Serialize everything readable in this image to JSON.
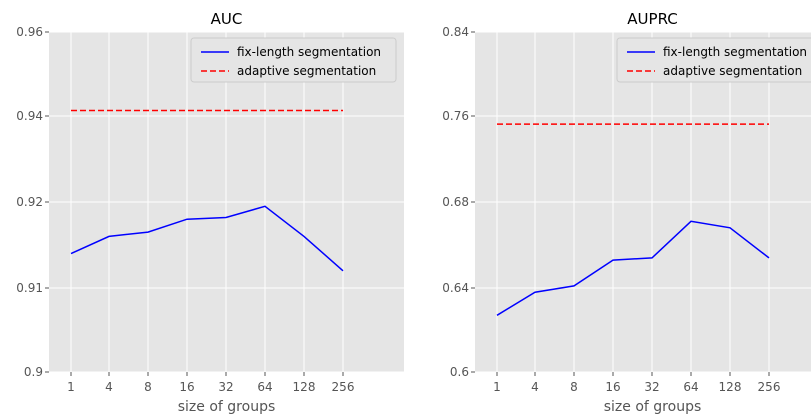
{
  "chart_data": [
    {
      "type": "line",
      "title": "AUC",
      "xlabel": "size of groups",
      "ylabel": "",
      "x": [
        "1",
        "4",
        "8",
        "16",
        "32",
        "64",
        "128",
        "256"
      ],
      "ytick_labels": [
        "0.96",
        "0.94",
        "0.92",
        "0.91",
        "0.9"
      ],
      "series": [
        {
          "name": "fix-length segmentation",
          "style": "solid",
          "color": "#0000ff",
          "values": [
            0.914,
            0.916,
            0.9165,
            0.918,
            0.9182,
            0.9195,
            0.916,
            0.912
          ]
        },
        {
          "name": "adaptive segmentation",
          "style": "dashed",
          "color": "#ff0000",
          "values": [
            0.9413,
            0.9413,
            0.9413,
            0.9413,
            0.9413,
            0.9413,
            0.9413,
            0.9413
          ]
        }
      ],
      "grid": true,
      "legend": "top-right"
    },
    {
      "type": "line",
      "title": "AUPRC",
      "xlabel": "size of groups",
      "ylabel": "",
      "x": [
        "1",
        "4",
        "8",
        "16",
        "32",
        "64",
        "128",
        "256"
      ],
      "ytick_labels": [
        "0.84",
        "0.76",
        "0.68",
        "0.64",
        "0.6"
      ],
      "series": [
        {
          "name": "fix-length segmentation",
          "style": "solid",
          "color": "#0000ff",
          "values": [
            0.627,
            0.638,
            0.641,
            0.653,
            0.654,
            0.671,
            0.668,
            0.654
          ]
        },
        {
          "name": "adaptive segmentation",
          "style": "dashed",
          "color": "#ff0000",
          "values": [
            0.7525,
            0.7525,
            0.7525,
            0.7525,
            0.7525,
            0.7525,
            0.7525,
            0.7525
          ]
        }
      ],
      "grid": true,
      "legend": "top-right"
    }
  ]
}
